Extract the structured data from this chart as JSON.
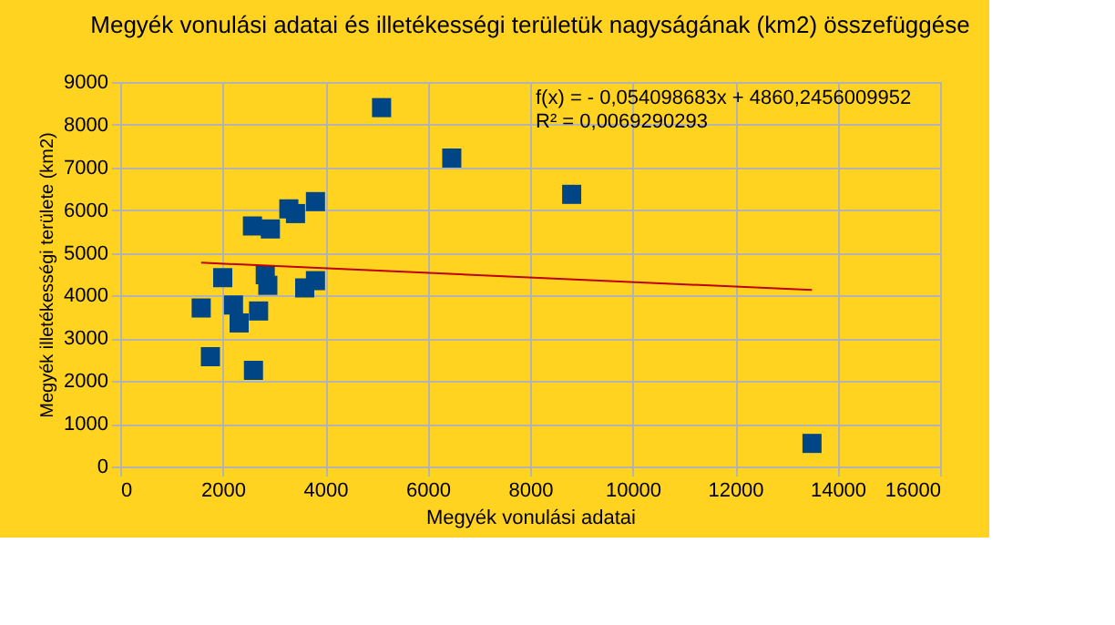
{
  "chart_data": {
    "type": "scatter",
    "title": "Megyék vonulási adatai és illetékességi területük nagyságának (km2) összefüggése",
    "xlabel": "Megyék vonulási adatai",
    "ylabel": "Megyék illetékességi területe (km2)",
    "xlim": [
      0,
      16000
    ],
    "xticks": [
      0,
      2000,
      4000,
      6000,
      8000,
      10000,
      12000,
      14000,
      16000
    ],
    "ylim": [
      0,
      9000
    ],
    "yticks": [
      0,
      1000,
      2000,
      3000,
      4000,
      5000,
      6000,
      7000,
      8000,
      9000
    ],
    "grid": true,
    "legend": false,
    "series": [
      {
        "color": "#004586",
        "marker": "square",
        "x": [
          1580,
          1760,
          2000,
          2210,
          2320,
          2700,
          2600,
          2580,
          2930,
          2830,
          2880,
          3290,
          3420,
          3810,
          3600,
          3810,
          5100,
          6470,
          8810,
          13500
        ],
        "values": [
          3710,
          2570,
          4420,
          3780,
          3360,
          3640,
          2250,
          5630,
          5560,
          4490,
          4240,
          6030,
          5920,
          6200,
          4180,
          4350,
          8400,
          7220,
          6370,
          540
        ]
      },
      {
        "type": "line",
        "color": "#c00000",
        "x": [
          1580,
          13500
        ],
        "values": [
          4770,
          4130
        ]
      }
    ],
    "annotations": [
      {
        "text": "f(x) =  - 0,054098683x + 4860,2456009952"
      },
      {
        "text": "R² = 0,0069290293"
      }
    ]
  }
}
